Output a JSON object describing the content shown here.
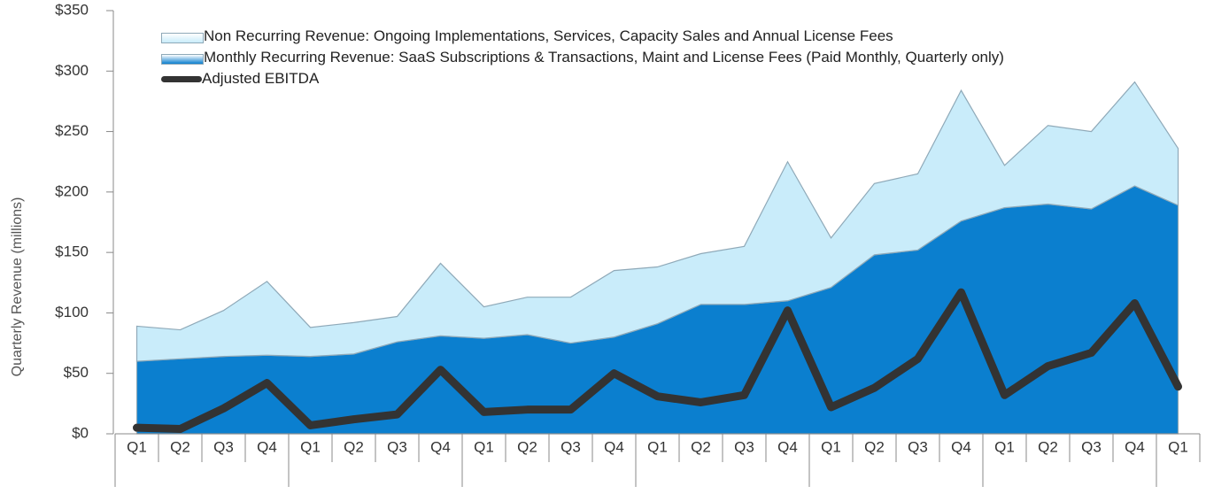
{
  "chart_data": {
    "type": "stacked_area_line",
    "y_label": "Quarterly Revenue (millions)",
    "categories": [
      "Q1",
      "Q2",
      "Q3",
      "Q4",
      "Q1",
      "Q2",
      "Q3",
      "Q4",
      "Q1",
      "Q2",
      "Q3",
      "Q4",
      "Q1",
      "Q2",
      "Q3",
      "Q4",
      "Q1",
      "Q2",
      "Q3",
      "Q4",
      "Q1",
      "Q2",
      "Q3",
      "Q4",
      "Q1"
    ],
    "series": [
      {
        "name": "Non Recurring Revenue: Ongoing Implementations, Services, Capacity Sales and Annual License Fees",
        "kind": "area",
        "color": "#c9ecfa",
        "values": [
          29,
          24,
          38,
          61,
          24,
          26,
          21,
          60,
          26,
          31,
          38,
          55,
          47,
          42,
          48,
          115,
          41,
          59,
          63,
          108,
          35,
          65,
          64,
          86,
          47
        ]
      },
      {
        "name": "Monthly Recurring Revenue: SaaS Subscriptions & Transactions, Maint and License Fees (Paid Monthly, Quarterly only)",
        "kind": "area",
        "color": "#0b7fcf",
        "values": [
          60,
          62,
          64,
          65,
          64,
          66,
          76,
          81,
          79,
          82,
          75,
          80,
          91,
          107,
          107,
          110,
          121,
          148,
          152,
          176,
          187,
          190,
          186,
          205,
          189
        ]
      },
      {
        "name": "Adjusted EBITDA",
        "kind": "line",
        "color": "#333333",
        "values": [
          5,
          4,
          21,
          42,
          7,
          12,
          16,
          53,
          18,
          20,
          20,
          50,
          31,
          26,
          32,
          102,
          22,
          38,
          62,
          117,
          32,
          56,
          67,
          108,
          39
        ]
      }
    ],
    "ylim": [
      0,
      350
    ],
    "yticks": [
      {
        "value": 0,
        "label": "$0"
      },
      {
        "value": 50,
        "label": "$50"
      },
      {
        "value": 100,
        "label": "$100"
      },
      {
        "value": 150,
        "label": "$150"
      },
      {
        "value": 200,
        "label": "$200"
      },
      {
        "value": 250,
        "label": "$250"
      },
      {
        "value": 300,
        "label": "$300"
      },
      {
        "value": 350,
        "label": "$350"
      }
    ]
  }
}
